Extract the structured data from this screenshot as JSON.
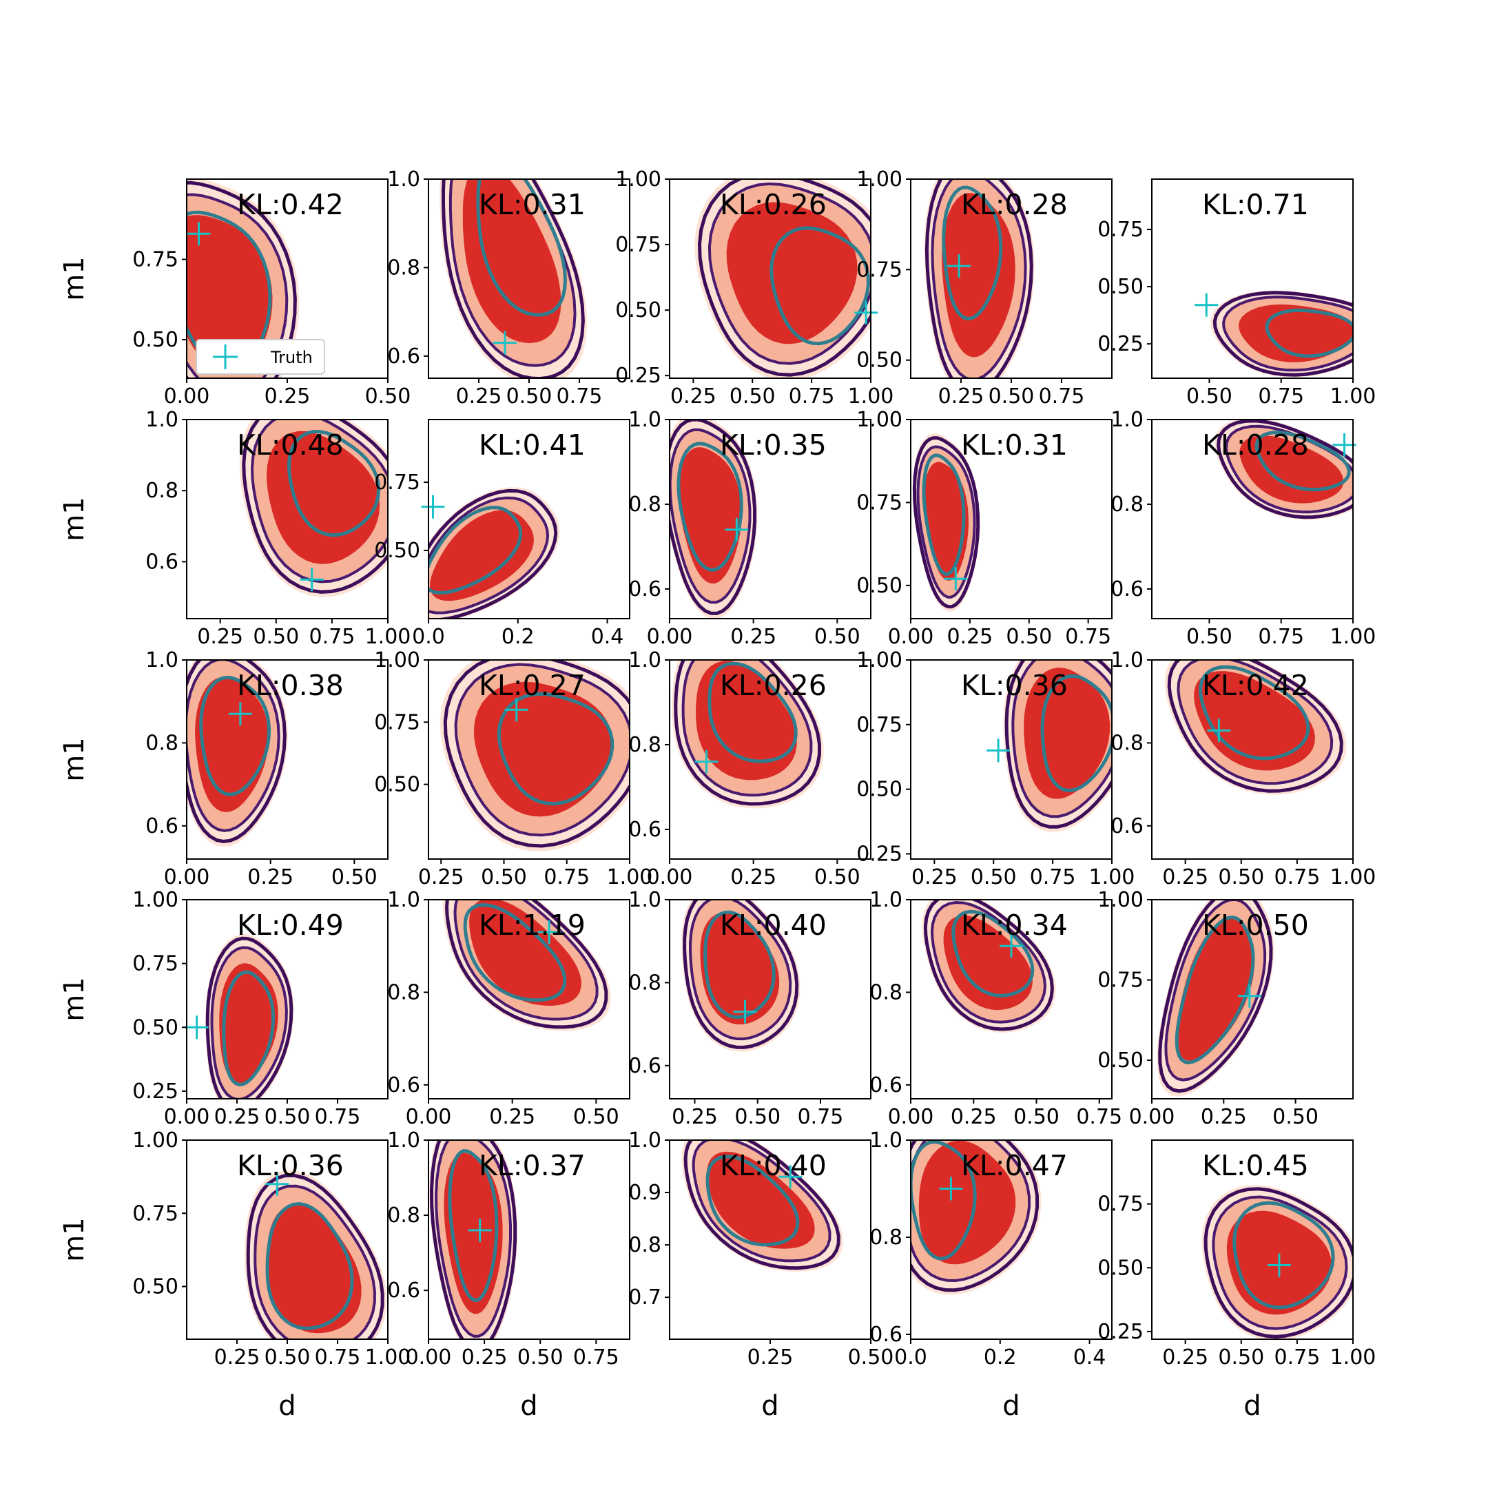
{
  "colors": {
    "fill_outer": "#fde0d2",
    "fill_mid": "#f6b39a",
    "fill_inner": "#db2b26",
    "contour_outer": "#3e0d5a",
    "contour_mid": "#4a1a6e",
    "contour_inner": "#2e7e8f",
    "truth": "#17c1c6"
  },
  "shared": {
    "xlabel": "d",
    "ylabel": "m1",
    "legend_label": "Truth",
    "legend_panel": 0
  },
  "chart_data": [
    {
      "type": "scatter",
      "kl": "KL:0.42",
      "xlim": [
        0,
        0.5
      ],
      "ylim": [
        0.38,
        1.0
      ],
      "xticks": [
        0,
        0.25,
        0.5
      ],
      "xticklabels": [
        "0.00",
        "0.25",
        "0.50"
      ],
      "yticks": [
        0.5,
        0.75
      ],
      "yticklabels": [
        "0.50",
        "0.75"
      ],
      "truth": [
        0.03,
        0.83
      ],
      "density": {
        "cx": 0.08,
        "cy": 0.65,
        "w": 0.14,
        "h": 0.28,
        "angle": 8
      },
      "inner_contour": {
        "cx": 0.08,
        "cy": 0.66,
        "w": 0.12,
        "h": 0.25,
        "angle": 8
      }
    },
    {
      "type": "scatter",
      "kl": "KL:0.31",
      "xlim": [
        0,
        1
      ],
      "ylim": [
        0.55,
        1.0
      ],
      "xticks": [
        0.25,
        0.5,
        0.75
      ],
      "xticklabels": [
        "0.25",
        "0.50",
        "0.75"
      ],
      "yticks": [
        0.6,
        0.8,
        1.0
      ],
      "yticklabels": [
        "0.6",
        "0.8",
        "1.0"
      ],
      "truth": [
        0.38,
        0.63
      ],
      "density": {
        "cx": 0.4,
        "cy": 0.82,
        "w": 0.3,
        "h": 0.18,
        "angle": -30
      },
      "inner_contour": {
        "cx": 0.45,
        "cy": 0.86,
        "w": 0.24,
        "h": 0.14,
        "angle": -30
      }
    },
    {
      "type": "scatter",
      "kl": "KL:0.26",
      "xlim": [
        0.15,
        1.0
      ],
      "ylim": [
        0.24,
        1.0
      ],
      "xticks": [
        0.25,
        0.5,
        0.75,
        1.0
      ],
      "xticklabels": [
        "0.25",
        "0.50",
        "0.75",
        "1.00"
      ],
      "yticks": [
        0.25,
        0.5,
        0.75,
        1.0
      ],
      "yticklabels": [
        "0.25",
        "0.50",
        "0.75",
        "1.00"
      ],
      "truth": [
        0.98,
        0.49
      ],
      "density": {
        "cx": 0.66,
        "cy": 0.65,
        "w": 0.3,
        "h": 0.3,
        "angle": 0
      },
      "inner_contour": {
        "cx": 0.78,
        "cy": 0.6,
        "w": 0.2,
        "h": 0.22,
        "angle": 0
      }
    },
    {
      "type": "scatter",
      "kl": "KL:0.28",
      "xlim": [
        0,
        1.0
      ],
      "ylim": [
        0.45,
        1.0
      ],
      "xticks": [
        0.25,
        0.5,
        0.75
      ],
      "xticklabels": [
        "0.25",
        "0.50",
        "0.75"
      ],
      "yticks": [
        0.5,
        0.75,
        1.0
      ],
      "yticklabels": [
        "0.50",
        "0.75",
        "1.00"
      ],
      "truth": [
        0.24,
        0.76
      ],
      "density": {
        "cx": 0.33,
        "cy": 0.74,
        "w": 0.2,
        "h": 0.25,
        "angle": -5
      },
      "inner_contour": {
        "cx": 0.3,
        "cy": 0.8,
        "w": 0.14,
        "h": 0.18,
        "angle": -5
      }
    },
    {
      "type": "scatter",
      "kl": "KL:0.71",
      "xlim": [
        0.3,
        1.0
      ],
      "ylim": [
        0.1,
        0.97
      ],
      "xticks": [
        0.5,
        0.75,
        1.0
      ],
      "xticklabels": [
        "0.50",
        "0.75",
        "1.00"
      ],
      "yticks": [
        0.25,
        0.5,
        0.75
      ],
      "yticklabels": [
        "0.25",
        "0.50",
        "0.75"
      ],
      "truth": [
        0.49,
        0.42
      ],
      "density": {
        "cx": 0.8,
        "cy": 0.3,
        "w": 0.22,
        "h": 0.14,
        "angle": 0
      },
      "inner_contour": {
        "cx": 0.85,
        "cy": 0.3,
        "w": 0.15,
        "h": 0.1,
        "angle": 0
      }
    },
    {
      "type": "scatter",
      "kl": "KL:0.48",
      "xlim": [
        0.1,
        1.0
      ],
      "ylim": [
        0.44,
        1.0
      ],
      "xticks": [
        0.25,
        0.5,
        0.75,
        1.0
      ],
      "xticklabels": [
        "0.25",
        "0.50",
        "0.75",
        "1.00"
      ],
      "yticks": [
        0.6,
        0.8,
        1.0
      ],
      "yticklabels": [
        "0.6",
        "0.8",
        "1.0"
      ],
      "truth": [
        0.66,
        0.55
      ],
      "density": {
        "cx": 0.7,
        "cy": 0.78,
        "w": 0.28,
        "h": 0.2,
        "angle": -10
      },
      "inner_contour": {
        "cx": 0.75,
        "cy": 0.82,
        "w": 0.2,
        "h": 0.14,
        "angle": -10
      }
    },
    {
      "type": "scatter",
      "kl": "KL:0.41",
      "xlim": [
        0,
        0.45
      ],
      "ylim": [
        0.25,
        0.98
      ],
      "xticks": [
        0,
        0.2,
        0.4
      ],
      "xticklabels": [
        "0.0",
        "0.2",
        "0.4"
      ],
      "yticks": [
        0.5,
        0.75
      ],
      "yticklabels": [
        "0.50",
        "0.75"
      ],
      "truth": [
        0.01,
        0.66
      ],
      "density": {
        "cx": 0.12,
        "cy": 0.48,
        "w": 0.1,
        "h": 0.2,
        "angle": -30
      },
      "inner_contour": {
        "cx": 0.1,
        "cy": 0.5,
        "w": 0.08,
        "h": 0.17,
        "angle": -30
      }
    },
    {
      "type": "scatter",
      "kl": "KL:0.35",
      "xlim": [
        0,
        0.6
      ],
      "ylim": [
        0.53,
        1.0
      ],
      "xticks": [
        0,
        0.25,
        0.5
      ],
      "xticklabels": [
        "0.00",
        "0.25",
        "0.50"
      ],
      "yticks": [
        0.6,
        0.8,
        1.0
      ],
      "yticklabels": [
        "0.6",
        "0.8",
        "1.0"
      ],
      "truth": [
        0.2,
        0.74
      ],
      "density": {
        "cx": 0.12,
        "cy": 0.78,
        "w": 0.1,
        "h": 0.18,
        "angle": 5
      },
      "inner_contour": {
        "cx": 0.12,
        "cy": 0.8,
        "w": 0.09,
        "h": 0.15,
        "angle": 5
      }
    },
    {
      "type": "scatter",
      "kl": "KL:0.31",
      "xlim": [
        0,
        0.85
      ],
      "ylim": [
        0.4,
        1.0
      ],
      "xticks": [
        0,
        0.25,
        0.5,
        0.75
      ],
      "xticklabels": [
        "0.00",
        "0.25",
        "0.50",
        "0.75"
      ],
      "yticks": [
        0.5,
        0.75,
        1.0
      ],
      "yticklabels": [
        "0.50",
        "0.75",
        "1.00"
      ],
      "truth": [
        0.19,
        0.52
      ],
      "density": {
        "cx": 0.15,
        "cy": 0.7,
        "w": 0.1,
        "h": 0.2,
        "angle": 5
      },
      "inner_contour": {
        "cx": 0.14,
        "cy": 0.72,
        "w": 0.08,
        "h": 0.18,
        "angle": 5
      }
    },
    {
      "type": "scatter",
      "kl": "KL:0.28",
      "xlim": [
        0.3,
        1.0
      ],
      "ylim": [
        0.53,
        1.0
      ],
      "xticks": [
        0.5,
        0.75,
        1.0
      ],
      "xticklabels": [
        "0.50",
        "0.75",
        "1.00"
      ],
      "yticks": [
        0.6,
        0.8,
        1.0
      ],
      "yticklabels": [
        "0.6",
        "0.8",
        "1.0"
      ],
      "truth": [
        0.97,
        0.94
      ],
      "density": {
        "cx": 0.78,
        "cy": 0.88,
        "w": 0.2,
        "h": 0.08,
        "angle": -10
      },
      "inner_contour": {
        "cx": 0.82,
        "cy": 0.9,
        "w": 0.16,
        "h": 0.06,
        "angle": -10
      }
    },
    {
      "type": "scatter",
      "kl": "KL:0.38",
      "xlim": [
        0,
        0.6
      ],
      "ylim": [
        0.52,
        1.0
      ],
      "xticks": [
        0,
        0.25,
        0.5
      ],
      "xticklabels": [
        "0.00",
        "0.25",
        "0.50"
      ],
      "yticks": [
        0.6,
        0.8,
        1.0
      ],
      "yticklabels": [
        "0.6",
        "0.8",
        "1.0"
      ],
      "truth": [
        0.16,
        0.87
      ],
      "density": {
        "cx": 0.13,
        "cy": 0.8,
        "w": 0.12,
        "h": 0.18,
        "angle": -5
      },
      "inner_contour": {
        "cx": 0.14,
        "cy": 0.82,
        "w": 0.1,
        "h": 0.14,
        "angle": -5
      }
    },
    {
      "type": "scatter",
      "kl": "KL:0.27",
      "xlim": [
        0.2,
        1.0
      ],
      "ylim": [
        0.2,
        1.0
      ],
      "xticks": [
        0.25,
        0.5,
        0.75,
        1.0
      ],
      "xticklabels": [
        "0.25",
        "0.50",
        "0.75",
        "1.00"
      ],
      "yticks": [
        0.5,
        0.75,
        1.0
      ],
      "yticklabels": [
        "0.50",
        "0.75",
        "1.00"
      ],
      "truth": [
        0.55,
        0.8
      ],
      "density": {
        "cx": 0.65,
        "cy": 0.65,
        "w": 0.3,
        "h": 0.3,
        "angle": 0
      },
      "inner_contour": {
        "cx": 0.7,
        "cy": 0.65,
        "w": 0.22,
        "h": 0.22,
        "angle": 0
      }
    },
    {
      "type": "scatter",
      "kl": "KL:0.26",
      "xlim": [
        0,
        0.6
      ],
      "ylim": [
        0.53,
        1.0
      ],
      "xticks": [
        0,
        0.25,
        0.5
      ],
      "xticklabels": [
        "0.00",
        "0.25",
        "0.50"
      ],
      "yticks": [
        0.6,
        0.8,
        1.0
      ],
      "yticklabels": [
        "0.6",
        "0.8",
        "1.0"
      ],
      "truth": [
        0.11,
        0.76
      ],
      "density": {
        "cx": 0.22,
        "cy": 0.85,
        "w": 0.18,
        "h": 0.14,
        "angle": -30
      },
      "inner_contour": {
        "cx": 0.24,
        "cy": 0.87,
        "w": 0.14,
        "h": 0.1,
        "angle": -30
      }
    },
    {
      "type": "scatter",
      "kl": "KL:0.36",
      "xlim": [
        0.15,
        1.0
      ],
      "ylim": [
        0.23,
        1.0
      ],
      "xticks": [
        0.25,
        0.5,
        0.75,
        1.0
      ],
      "xticklabels": [
        "0.25",
        "0.50",
        "0.75",
        "1.00"
      ],
      "yticks": [
        0.25,
        0.5,
        0.75,
        1.0
      ],
      "yticklabels": [
        "0.25",
        "0.50",
        "0.75",
        "1.00"
      ],
      "truth": [
        0.52,
        0.65
      ],
      "density": {
        "cx": 0.8,
        "cy": 0.72,
        "w": 0.2,
        "h": 0.28,
        "angle": -10
      },
      "inner_contour": {
        "cx": 0.85,
        "cy": 0.72,
        "w": 0.15,
        "h": 0.22,
        "angle": -10
      }
    },
    {
      "type": "scatter",
      "kl": "KL:0.42",
      "xlim": [
        0.1,
        1.0
      ],
      "ylim": [
        0.52,
        1.0
      ],
      "xticks": [
        0.25,
        0.5,
        0.75,
        1.0
      ],
      "xticklabels": [
        "0.25",
        "0.50",
        "0.75",
        "1.00"
      ],
      "yticks": [
        0.6,
        0.8,
        1.0
      ],
      "yticklabels": [
        "0.6",
        "0.8",
        "1.0"
      ],
      "truth": [
        0.4,
        0.83
      ],
      "density": {
        "cx": 0.55,
        "cy": 0.85,
        "w": 0.3,
        "h": 0.12,
        "angle": -10
      },
      "inner_contour": {
        "cx": 0.55,
        "cy": 0.87,
        "w": 0.24,
        "h": 0.1,
        "angle": -10
      }
    },
    {
      "type": "scatter",
      "kl": "KL:0.49",
      "xlim": [
        0,
        1.0
      ],
      "ylim": [
        0.22,
        1.0
      ],
      "xticks": [
        0,
        0.25,
        0.5,
        0.75
      ],
      "xticklabels": [
        "0.00",
        "0.25",
        "0.50",
        "0.75"
      ],
      "yticks": [
        0.25,
        0.5,
        0.75,
        1.0
      ],
      "yticklabels": [
        "0.25",
        "0.50",
        "0.75",
        "1.00"
      ],
      "truth": [
        0.05,
        0.5
      ],
      "density": {
        "cx": 0.3,
        "cy": 0.52,
        "w": 0.16,
        "h": 0.26,
        "angle": -10
      },
      "inner_contour": {
        "cx": 0.3,
        "cy": 0.5,
        "w": 0.12,
        "h": 0.22,
        "angle": -10
      }
    },
    {
      "type": "scatter",
      "kl": "KL:1.19",
      "xlim": [
        0,
        0.6
      ],
      "ylim": [
        0.57,
        1.0
      ],
      "xticks": [
        0,
        0.25,
        0.5
      ],
      "xticklabels": [
        "0.00",
        "0.25",
        "0.50"
      ],
      "yticks": [
        0.6,
        0.8,
        1.0
      ],
      "yticklabels": [
        "0.6",
        "0.8",
        "1.0"
      ],
      "truth": [
        0.36,
        0.93
      ],
      "density": {
        "cx": 0.28,
        "cy": 0.88,
        "w": 0.2,
        "h": 0.1,
        "angle": -25
      },
      "inner_contour": {
        "cx": 0.25,
        "cy": 0.88,
        "w": 0.16,
        "h": 0.08,
        "angle": -25
      }
    },
    {
      "type": "scatter",
      "kl": "KL:0.40",
      "xlim": [
        0.15,
        0.95
      ],
      "ylim": [
        0.52,
        1.0
      ],
      "xticks": [
        0.25,
        0.5,
        0.75
      ],
      "xticklabels": [
        "0.25",
        "0.50",
        "0.75"
      ],
      "yticks": [
        0.6,
        0.8,
        1.0
      ],
      "yticklabels": [
        "0.6",
        "0.8",
        "1.0"
      ],
      "truth": [
        0.45,
        0.73
      ],
      "density": {
        "cx": 0.42,
        "cy": 0.83,
        "w": 0.18,
        "h": 0.14,
        "angle": -20
      },
      "inner_contour": {
        "cx": 0.42,
        "cy": 0.84,
        "w": 0.14,
        "h": 0.12,
        "angle": -20
      }
    },
    {
      "type": "scatter",
      "kl": "KL:0.34",
      "xlim": [
        0,
        0.8
      ],
      "ylim": [
        0.57,
        1.0
      ],
      "xticks": [
        0,
        0.25,
        0.5,
        0.75
      ],
      "xticklabels": [
        "0.00",
        "0.25",
        "0.50",
        "0.75"
      ],
      "yticks": [
        0.6,
        0.8,
        1.0
      ],
      "yticklabels": [
        "0.6",
        "0.8",
        "1.0"
      ],
      "truth": [
        0.4,
        0.9
      ],
      "density": {
        "cx": 0.3,
        "cy": 0.86,
        "w": 0.2,
        "h": 0.1,
        "angle": -15
      },
      "inner_contour": {
        "cx": 0.32,
        "cy": 0.88,
        "w": 0.16,
        "h": 0.08,
        "angle": -15
      }
    },
    {
      "type": "scatter",
      "kl": "KL:0.50",
      "xlim": [
        0,
        0.7
      ],
      "ylim": [
        0.38,
        1.0
      ],
      "xticks": [
        0,
        0.25,
        0.5
      ],
      "xticklabels": [
        "0.00",
        "0.25",
        "0.50"
      ],
      "yticks": [
        0.5,
        0.75,
        1.0
      ],
      "yticklabels": [
        "0.50",
        "0.75",
        "1.00"
      ],
      "truth": [
        0.34,
        0.7
      ],
      "density": {
        "cx": 0.22,
        "cy": 0.72,
        "w": 0.12,
        "h": 0.26,
        "angle": -25
      },
      "inner_contour": {
        "cx": 0.22,
        "cy": 0.72,
        "w": 0.1,
        "h": 0.24,
        "angle": -25
      }
    },
    {
      "type": "scatter",
      "kl": "KL:0.36",
      "xlim": [
        0,
        1.0
      ],
      "ylim": [
        0.32,
        1.0
      ],
      "xticks": [
        0.25,
        0.5,
        0.75,
        1.0
      ],
      "xticklabels": [
        "0.25",
        "0.50",
        "0.75",
        "1.00"
      ],
      "yticks": [
        0.5,
        0.75,
        1.0
      ],
      "yticklabels": [
        "0.50",
        "0.75",
        "1.00"
      ],
      "truth": [
        0.45,
        0.85
      ],
      "density": {
        "cx": 0.62,
        "cy": 0.55,
        "w": 0.28,
        "h": 0.22,
        "angle": -30
      },
      "inner_contour": {
        "cx": 0.6,
        "cy": 0.56,
        "w": 0.22,
        "h": 0.2,
        "angle": -30
      }
    },
    {
      "type": "scatter",
      "kl": "KL:0.37",
      "xlim": [
        0,
        0.9
      ],
      "ylim": [
        0.47,
        1.0
      ],
      "xticks": [
        0,
        0.25,
        0.5,
        0.75
      ],
      "xticklabels": [
        "0.00",
        "0.25",
        "0.50",
        "0.75"
      ],
      "yticks": [
        0.6,
        0.8,
        1.0
      ],
      "yticklabels": [
        "0.6",
        "0.8",
        "1.0"
      ],
      "truth": [
        0.23,
        0.76
      ],
      "density": {
        "cx": 0.2,
        "cy": 0.76,
        "w": 0.14,
        "h": 0.24,
        "angle": 5
      },
      "inner_contour": {
        "cx": 0.2,
        "cy": 0.78,
        "w": 0.1,
        "h": 0.2,
        "angle": 5
      }
    },
    {
      "type": "scatter",
      "kl": "KL:0.40",
      "xlim": [
        0,
        0.5
      ],
      "ylim": [
        0.62,
        1.0
      ],
      "xticks": [
        0.25,
        0.5
      ],
      "xticklabels": [
        "0.25",
        "0.50"
      ],
      "yticks": [
        0.7,
        0.8,
        0.9,
        1.0
      ],
      "yticklabels": [
        "0.7",
        "0.8",
        "0.9",
        "1.0"
      ],
      "truth": [
        0.3,
        0.93
      ],
      "density": {
        "cx": 0.22,
        "cy": 0.88,
        "w": 0.16,
        "h": 0.08,
        "angle": -25
      },
      "inner_contour": {
        "cx": 0.2,
        "cy": 0.88,
        "w": 0.12,
        "h": 0.07,
        "angle": -25
      }
    },
    {
      "type": "scatter",
      "kl": "KL:0.47",
      "xlim": [
        0,
        0.45
      ],
      "ylim": [
        0.59,
        1.0
      ],
      "xticks": [
        0,
        0.2,
        0.4
      ],
      "xticklabels": [
        "0.0",
        "0.2",
        "0.4"
      ],
      "yticks": [
        0.6,
        0.8,
        1.0
      ],
      "yticklabels": [
        "0.6",
        "0.8",
        "1.0"
      ],
      "truth": [
        0.09,
        0.9
      ],
      "density": {
        "cx": 0.12,
        "cy": 0.87,
        "w": 0.12,
        "h": 0.14,
        "angle": -20
      },
      "inner_contour": {
        "cx": 0.07,
        "cy": 0.88,
        "w": 0.07,
        "h": 0.12,
        "angle": 0
      }
    },
    {
      "type": "scatter",
      "kl": "KL:0.45",
      "xlim": [
        0.1,
        1.0
      ],
      "ylim": [
        0.22,
        1.0
      ],
      "xticks": [
        0.25,
        0.5,
        0.75,
        1.0
      ],
      "xticklabels": [
        "0.25",
        "0.50",
        "0.75",
        "1.00"
      ],
      "yticks": [
        0.25,
        0.5,
        0.75
      ],
      "yticklabels": [
        "0.25",
        "0.50",
        "0.75"
      ],
      "truth": [
        0.67,
        0.51
      ],
      "density": {
        "cx": 0.66,
        "cy": 0.52,
        "w": 0.26,
        "h": 0.22,
        "angle": -10
      },
      "inner_contour": {
        "cx": 0.68,
        "cy": 0.55,
        "w": 0.22,
        "h": 0.2,
        "angle": -10
      }
    }
  ]
}
